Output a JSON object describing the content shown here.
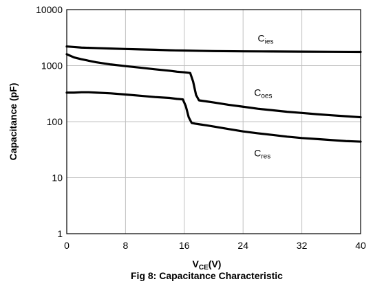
{
  "chart_data": {
    "type": "line",
    "title": "Fig 8: Capacitance Characteristic",
    "xlabel": {
      "main": "V",
      "sub": "CE",
      "suffix": "(V)"
    },
    "ylabel": "Capacitance (pF)",
    "xlim": [
      0,
      40
    ],
    "ylim": [
      1,
      10000
    ],
    "yscale": "log",
    "grid": true,
    "xticks": [
      0,
      8,
      16,
      24,
      32,
      40
    ],
    "xtick_labels": [
      "0",
      "8",
      "16",
      "24",
      "32",
      "40"
    ],
    "yticks": [
      1,
      10,
      100,
      1000,
      10000
    ],
    "ytick_labels": [
      "1",
      "10",
      "100",
      "1000",
      "10000"
    ],
    "series": [
      {
        "name": "Cies",
        "label_main": "C",
        "label_sub": "ies",
        "label_pos": [
          26,
          2700
        ],
        "x": [
          0,
          1,
          2,
          4,
          6,
          8,
          10,
          12,
          13,
          14,
          16,
          18,
          20,
          24,
          28,
          32,
          36,
          40
        ],
        "y": [
          2200,
          2150,
          2100,
          2060,
          2020,
          1980,
          1950,
          1920,
          1900,
          1880,
          1860,
          1840,
          1820,
          1800,
          1790,
          1780,
          1770,
          1760
        ]
      },
      {
        "name": "Coes",
        "label_main": "C",
        "label_sub": "oes",
        "label_pos": [
          25.5,
          290
        ],
        "x": [
          0,
          1,
          2,
          4,
          6,
          8,
          10,
          12,
          14,
          15,
          16,
          16.8,
          17.2,
          17.6,
          18,
          18.5,
          19,
          20,
          22,
          24,
          26,
          28,
          30,
          32,
          34,
          36,
          38,
          40
        ],
        "y": [
          1600,
          1400,
          1300,
          1150,
          1050,
          980,
          920,
          860,
          810,
          780,
          760,
          740,
          520,
          300,
          240,
          235,
          230,
          220,
          200,
          185,
          170,
          160,
          150,
          143,
          136,
          130,
          125,
          120
        ]
      },
      {
        "name": "Cres",
        "label_main": "C",
        "label_sub": "res",
        "label_pos": [
          25.5,
          24
        ],
        "x": [
          0,
          1,
          2,
          3,
          4,
          6,
          8,
          10,
          12,
          14,
          15,
          15.8,
          16.2,
          16.6,
          17,
          17.5,
          18,
          19,
          20,
          22,
          24,
          26,
          28,
          30,
          32,
          34,
          36,
          38,
          40
        ],
        "y": [
          330,
          330,
          335,
          335,
          330,
          320,
          305,
          290,
          275,
          265,
          255,
          250,
          190,
          120,
          95,
          92,
          90,
          86,
          82,
          74,
          67,
          62,
          58,
          54,
          51,
          49,
          47,
          45,
          44
        ]
      }
    ]
  }
}
